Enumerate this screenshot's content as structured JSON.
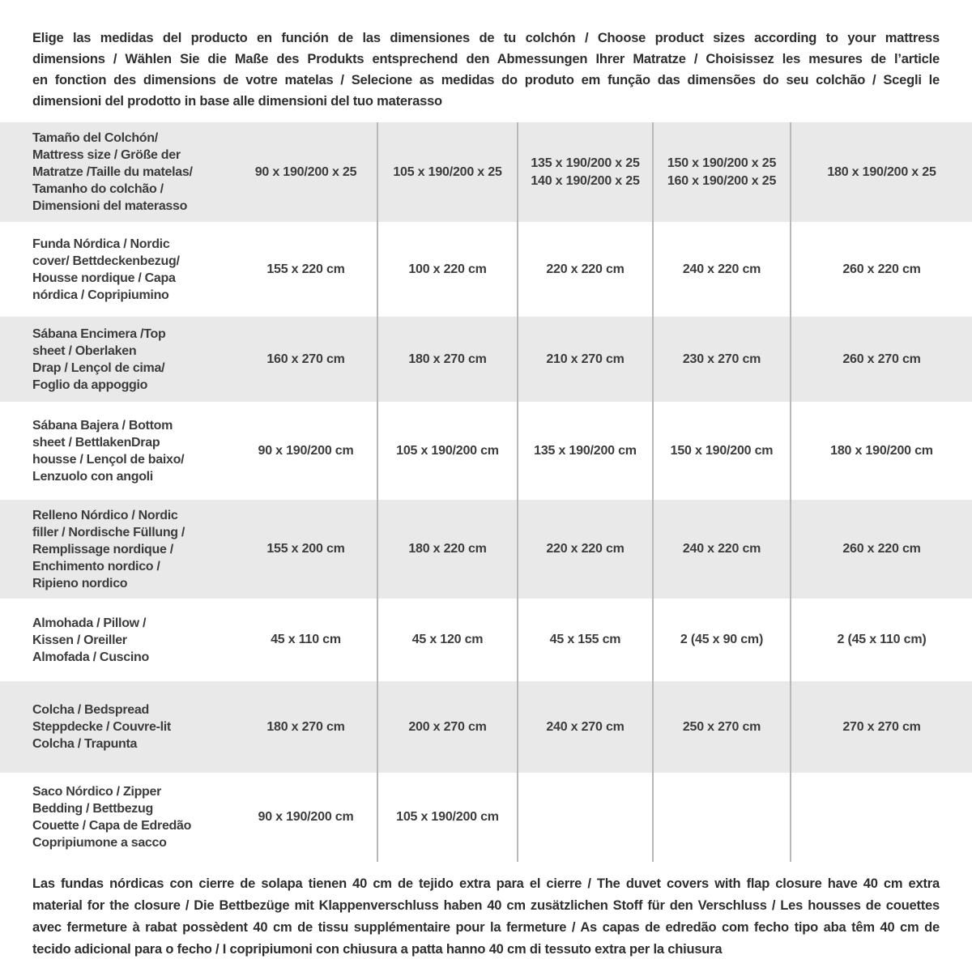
{
  "colors": {
    "row_gray": "#e9e9e9",
    "divider": "#b8b8b8",
    "paragraph_text": "#2e2e2e",
    "table_text": "#3c3c3c"
  },
  "intro": {
    "lines": [
      "Elige las medidas del producto en función de las dimensiones de tu colchón / Choose product sizes according to your mattress",
      "dimensions / Wählen Sie die Maße des Produkts entsprechend den Abmessungen Ihrer Matratze / Choisissez les mesures de l’article",
      "en fonction des dimensions de votre matelas / Selecione as medidas do produto em função das dimensões do seu colchão / Scegli le",
      "dimensioni del prodotto in base alle dimensioni del tuo materasso"
    ]
  },
  "table": {
    "header": {
      "label": "Tamaño del Colchón/\nMattress size / Größe der\nMatratze /Taille du matelas/\nTamanho do colchão /\nDimensioni del materasso",
      "values": [
        "90 x 190/200 x 25",
        "105 x 190/200 x 25",
        "135 x 190/200 x 25\n140 x 190/200 x 25",
        "150 x 190/200 x 25\n160 x 190/200 x 25",
        "180 x 190/200 x 25"
      ]
    },
    "rows": [
      {
        "label": "Funda Nórdica /  Nordic\ncover/ Bettdeckenbezug/\nHousse nordique  / Capa\nnórdica / Copripiumino",
        "values": [
          "155 x 220 cm",
          "100 x 220 cm",
          "220 x 220 cm",
          "240 x 220 cm",
          "260 x 220 cm"
        ]
      },
      {
        "label": "Sábana Encimera /Top\nsheet / Oberlaken\nDrap / Lençol de cima/\nFoglio da appoggio",
        "values": [
          "160 x 270 cm",
          "180 x 270 cm",
          "210 x 270 cm",
          "230 x 270 cm",
          "260 x 270 cm"
        ]
      },
      {
        "label": "Sábana Bajera / Bottom\nsheet / BettlakenDrap\nhousse / Lençol de baixo/\nLenzuolo con angoli",
        "values": [
          "90 x 190/200 cm",
          "105 x 190/200 cm",
          "135 x 190/200 cm",
          "150 x 190/200 cm",
          "180 x 190/200 cm"
        ]
      },
      {
        "label": "Relleno Nórdico / Nordic\nfiller / Nordische Füllung /\nRemplissage nordique /\nEnchimento nordico /\nRipieno nordico",
        "values": [
          "155 x 200 cm",
          "180 x 220 cm",
          "220 x 220 cm",
          "240 x 220 cm",
          "260 x 220 cm"
        ]
      },
      {
        "label": "Almohada  / Pillow /\nKissen / Oreiller\nAlmofada / Cuscino",
        "values": [
          "45 x 110 cm",
          "45 x 120 cm",
          "45 x 155 cm",
          "2 (45 x 90 cm)",
          "2 (45 x 110 cm)"
        ]
      },
      {
        "label": "Colcha / Bedspread\nSteppdecke / Couvre-lit\nColcha / Trapunta",
        "values": [
          "180 x 270 cm",
          "200 x 270 cm",
          "240 x 270 cm",
          "250 x 270 cm",
          "270 x 270 cm"
        ]
      },
      {
        "label": "Saco Nórdico / Zipper\nBedding / Bettbezug\nCouette  / Capa de Edredão\nCopripiumone a sacco",
        "values": [
          "90 x 190/200 cm",
          "105 x 190/200 cm",
          "",
          "",
          ""
        ]
      }
    ]
  },
  "footer": {
    "lines": [
      "Las fundas nórdicas con cierre de solapa tienen 40 cm de tejido extra para el cierre / The duvet covers with flap closure have 40 cm extra",
      "material for the closure / Die Bettbezüge mit Klappenverschluss haben 40 cm zusätzlichen Stoff für den Verschluss / Les housses de couettes",
      "avec fermeture à rabat possèdent 40 cm de tissu supplémentaire pour la fermeture / As capas de edredão com fecho tipo aba têm 40 cm de",
      "tecido adicional para o fecho / I copripiumoni con chiusura a patta hanno 40 cm di tessuto extra per la chiusura"
    ]
  }
}
